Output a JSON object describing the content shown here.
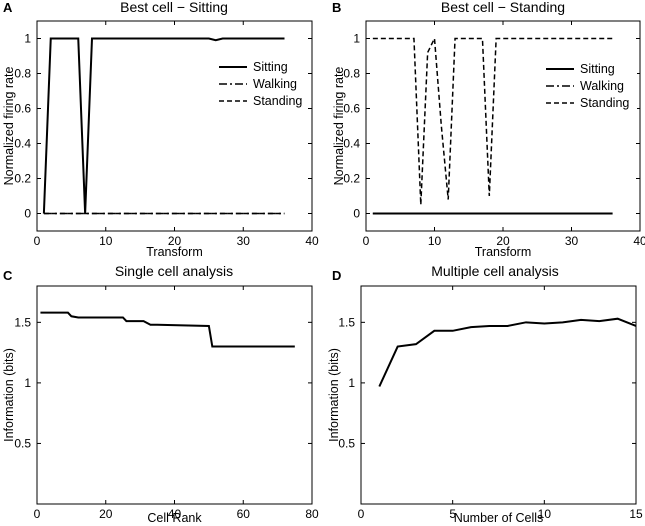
{
  "chart_data": [
    {
      "type": "line",
      "panel": "A",
      "title": "Best cell − Sitting",
      "xlabel": "Transform",
      "ylabel": "Normalized firing rate",
      "xlim": [
        0,
        40
      ],
      "ylim": [
        -0.1,
        1.1
      ],
      "xticks": [
        0,
        10,
        20,
        30,
        40
      ],
      "yticks": [
        0,
        0.2,
        0.4,
        0.6,
        0.8,
        1
      ],
      "legend": "right",
      "series": [
        {
          "name": "Sitting",
          "style": "solid",
          "x": [
            1,
            2,
            6,
            7,
            8,
            24,
            25,
            26,
            27,
            36
          ],
          "y": [
            0,
            1,
            1,
            0,
            1,
            1,
            1,
            0.99,
            1,
            1
          ]
        },
        {
          "name": "Walking",
          "style": "dashdot",
          "x": [
            1,
            36
          ],
          "y": [
            0,
            0
          ]
        },
        {
          "name": "Standing",
          "style": "dashed",
          "x": [
            1,
            36
          ],
          "y": [
            0,
            0
          ]
        }
      ]
    },
    {
      "type": "line",
      "panel": "B",
      "title": "Best cell − Standing",
      "xlabel": "Transform",
      "ylabel": "Normalized firing rate",
      "xlim": [
        0,
        40
      ],
      "ylim": [
        -0.1,
        1.1
      ],
      "xticks": [
        0,
        10,
        20,
        30,
        40
      ],
      "yticks": [
        0,
        0.2,
        0.4,
        0.6,
        0.8,
        1
      ],
      "legend": "right",
      "series": [
        {
          "name": "Sitting",
          "style": "solid",
          "x": [
            1,
            36
          ],
          "y": [
            0,
            0
          ]
        },
        {
          "name": "Walking",
          "style": "dashdot",
          "x": [
            1,
            36
          ],
          "y": [
            0,
            0
          ]
        },
        {
          "name": "Standing",
          "style": "dashed",
          "x": [
            1,
            6,
            7,
            8,
            9,
            10,
            11,
            12,
            13,
            17,
            18,
            19,
            36
          ],
          "y": [
            1,
            1,
            1,
            0.05,
            0.92,
            1,
            0.5,
            0.08,
            1,
            1,
            0.1,
            1,
            1
          ]
        }
      ]
    },
    {
      "type": "line",
      "panel": "C",
      "title": "Single cell analysis",
      "xlabel": "Cell Rank",
      "ylabel": "Information (bits)",
      "xlim": [
        0,
        80
      ],
      "ylim": [
        0,
        1.8
      ],
      "xticks": [
        0,
        20,
        40,
        60,
        80
      ],
      "yticks": [
        0.5,
        1,
        1.5
      ],
      "series": [
        {
          "name": "Information",
          "x": [
            1,
            9,
            10,
            12,
            25,
            26,
            31,
            33,
            35,
            50,
            51,
            75
          ],
          "y": [
            1.58,
            1.58,
            1.55,
            1.54,
            1.54,
            1.51,
            1.51,
            1.48,
            1.48,
            1.47,
            1.3,
            1.3
          ]
        }
      ]
    },
    {
      "type": "line",
      "panel": "D",
      "title": "Multiple cell analysis",
      "xlabel": "Number of Cells",
      "ylabel": "Information (bits)",
      "xlim": [
        0,
        15
      ],
      "ylim": [
        0,
        1.8
      ],
      "xticks": [
        0,
        5,
        10,
        15
      ],
      "yticks": [
        0.5,
        1,
        1.5
      ],
      "series": [
        {
          "name": "Information",
          "x": [
            1,
            2,
            3,
            4,
            5,
            6,
            7,
            8,
            9,
            10,
            11,
            12,
            13,
            14,
            15
          ],
          "y": [
            0.97,
            1.3,
            1.32,
            1.43,
            1.43,
            1.46,
            1.47,
            1.47,
            1.5,
            1.49,
            1.5,
            1.52,
            1.51,
            1.53,
            1.47
          ]
        }
      ]
    }
  ]
}
